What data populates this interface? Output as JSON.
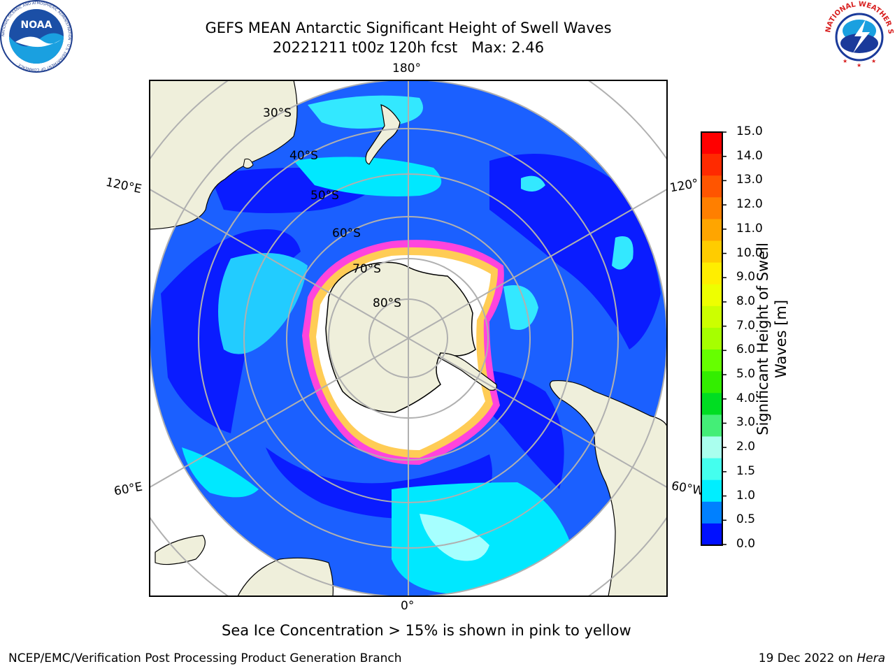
{
  "title": {
    "line1": "GEFS MEAN Antarctic Significant Height of Swell Waves",
    "line2": "20221211 t00z 120h fcst   Max: 2.46"
  },
  "map": {
    "projection": "south-polar-stereographic",
    "land_color": "#efefdb",
    "grid_color": "#b0b0b0",
    "longitude_labels": {
      "top": "180°",
      "bottom": "0°",
      "left_upper": "120°E",
      "left_lower": "60°E",
      "right_upper": "120°",
      "right_lower": "60°W"
    },
    "latitude_labels": [
      "30°S",
      "40°S",
      "50°S",
      "60°S",
      "70°S",
      "80°S"
    ]
  },
  "colorbar": {
    "label_line1": "Significant Height of Swell",
    "label_line2": "Waves [m]",
    "ticks": [
      "15.0",
      "14.0",
      "13.0",
      "12.0",
      "11.0",
      "10.0",
      "9.0",
      "8.0",
      "7.0",
      "6.0",
      "5.0",
      "4.0",
      "3.0",
      "2.0",
      "1.5",
      "1.0",
      "0.5",
      "0.0"
    ],
    "colors_top_to_bottom": [
      "#ff0000",
      "#ff2a00",
      "#ff5500",
      "#ff7f00",
      "#ffa500",
      "#ffcc00",
      "#ffee00",
      "#eeff00",
      "#ccff00",
      "#a6ff00",
      "#66ff00",
      "#33ee00",
      "#00dd22",
      "#44ee77",
      "#aaffee",
      "#44ffee",
      "#00eeff",
      "#0080ff",
      "#0010ff"
    ]
  },
  "caption": "Sea Ice Concentration > 15% is shown in pink to yellow",
  "footer": {
    "left": "NCEP/EMC/Verification Post Processing Product Generation Branch",
    "right_date": "19 Dec 2022 on ",
    "right_machine": "Hera"
  },
  "logos": {
    "noaa_text": "NOAA",
    "noaa_ring": "NATIONAL OCEANIC AND ATMOSPHERIC ADMINISTRATION · U.S. DEPARTMENT OF COMMERCE ·",
    "nws_ring": "NATIONAL WEATHER SERVICE"
  }
}
